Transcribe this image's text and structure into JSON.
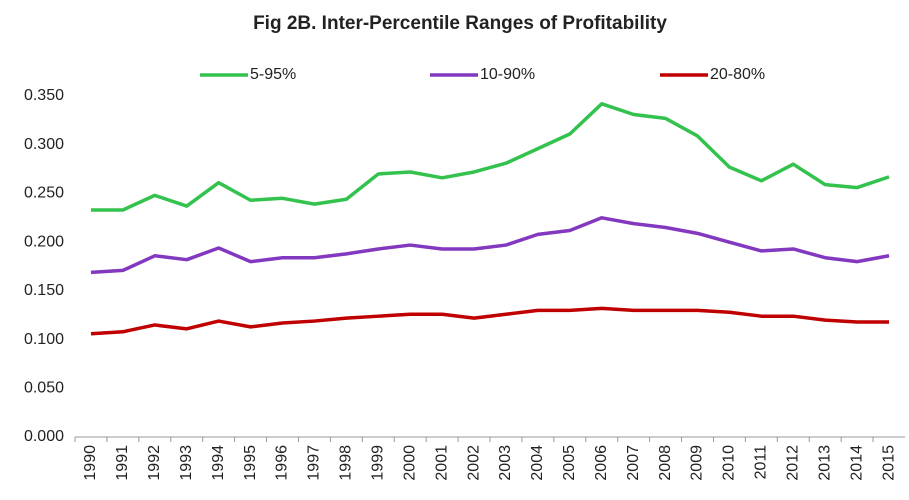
{
  "chart_data": {
    "type": "line",
    "title": "Fig 2B. Inter-Percentile Ranges of Profitability",
    "categories": [
      "1990",
      "1991",
      "1992",
      "1993",
      "1994",
      "1995",
      "1996",
      "1997",
      "1998",
      "1999",
      "2000",
      "2001",
      "2002",
      "2003",
      "2004",
      "2005",
      "2006",
      "2007",
      "2008",
      "2009",
      "2010",
      "2011",
      "2012",
      "2013",
      "2014",
      "2015"
    ],
    "series": [
      {
        "name": "5-95%",
        "color": "#33c24d",
        "values": [
          0.233,
          0.233,
          0.248,
          0.237,
          0.261,
          0.243,
          0.245,
          0.239,
          0.244,
          0.27,
          0.272,
          0.266,
          0.272,
          0.281,
          0.296,
          0.311,
          0.342,
          0.331,
          0.327,
          0.309,
          0.277,
          0.263,
          0.28,
          0.259,
          0.256,
          0.267
        ]
      },
      {
        "name": "10-90%",
        "color": "#8338c0",
        "values": [
          0.169,
          0.171,
          0.186,
          0.182,
          0.194,
          0.18,
          0.184,
          0.184,
          0.188,
          0.193,
          0.197,
          0.193,
          0.193,
          0.197,
          0.208,
          0.212,
          0.225,
          0.219,
          0.215,
          0.209,
          0.2,
          0.191,
          0.193,
          0.184,
          0.18,
          0.186
        ]
      },
      {
        "name": "20-80%",
        "color": "#c00000",
        "values": [
          0.106,
          0.108,
          0.115,
          0.111,
          0.119,
          0.113,
          0.117,
          0.119,
          0.122,
          0.124,
          0.126,
          0.126,
          0.122,
          0.126,
          0.13,
          0.13,
          0.132,
          0.13,
          0.13,
          0.13,
          0.128,
          0.124,
          0.124,
          0.12,
          0.118,
          0.118
        ]
      }
    ],
    "ylim": [
      0,
      0.35
    ],
    "yticks": [
      {
        "value": 0,
        "label": "0.000"
      },
      {
        "value": 0.05,
        "label": "0.050"
      },
      {
        "value": 0.1,
        "label": "0.100"
      },
      {
        "value": 0.15,
        "label": "0.150"
      },
      {
        "value": 0.2,
        "label": "0.200"
      },
      {
        "value": 0.25,
        "label": "0.250"
      },
      {
        "value": 0.3,
        "label": "0.300"
      },
      {
        "value": 0.35,
        "label": "0.350"
      }
    ],
    "grid": false,
    "legend": "top"
  }
}
